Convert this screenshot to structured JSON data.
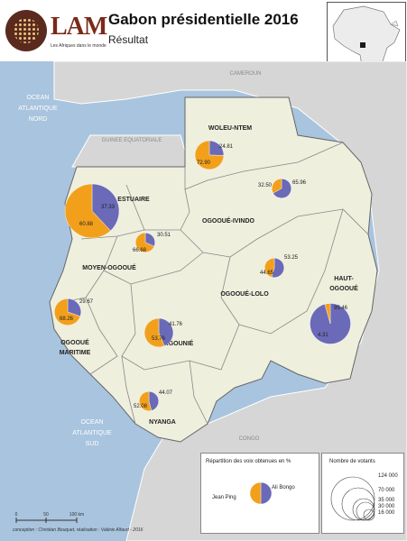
{
  "header": {
    "logo_text": "LAM",
    "logo_tagline": "Les Afriques dans le monde",
    "title": "Gabon présidentielle 2016",
    "subtitle": "Résultat"
  },
  "colors": {
    "bongo": "#6a6ab8",
    "ping": "#f2a01c",
    "sea": "#a9c4de",
    "gabon": "#efefde",
    "neighbor": "#d6d6d6"
  },
  "labels": {
    "sea_north": [
      "OCEAN",
      "ATLANTIQUE",
      "NORD"
    ],
    "sea_south": [
      "OCEAN",
      "ATLANTIQUE",
      "SUD"
    ],
    "cameroun": "CAMEROUN",
    "guinee": "GUINEE EQUATORIALE",
    "congo": "CONGO"
  },
  "provinces": [
    {
      "name": "ESTUAIRE",
      "bongo": 37.33,
      "ping": 60.88,
      "votants": 124000
    },
    {
      "name": "WOLEU-NTEM",
      "bongo": 24.81,
      "ping": 72.9,
      "votants": 35000
    },
    {
      "name": "OGOOUÉ-IVINDO",
      "bongo": 65.96,
      "ping": 32.5,
      "votants": 16000
    },
    {
      "name": "MOYEN-OGOOUÉ",
      "bongo": 30.51,
      "ping": 66.68,
      "votants": 16000
    },
    {
      "name": "OGOOUÉ-LOLO",
      "bongo": 53.25,
      "ping": 44.65,
      "votants": 16000
    },
    {
      "name": "HAUT-OGOOUÉ",
      "bongo": 95.46,
      "ping": 4.31,
      "votants": 70000
    },
    {
      "name": "OGOOUÉ MARITIME",
      "bongo": 29.67,
      "ping": 68.26,
      "votants": 30000
    },
    {
      "name": "NGOUNIÉ",
      "bongo": 41.76,
      "ping": 53.76,
      "votants": 35000
    },
    {
      "name": "NYANGA",
      "bongo": 44.07,
      "ping": 52.08,
      "votants": 16000
    }
  ],
  "legend": {
    "pie_title": "Répartition des voix obtenues en %",
    "bongo_label": "Ali Bongo",
    "ping_label": "Jean Ping",
    "size_title": "Nombre de votants",
    "size_values": [
      "124 000",
      "70 000",
      "35 000",
      "30 000",
      "16 000"
    ]
  },
  "scale": {
    "labels": [
      "0",
      "50",
      "100 km"
    ]
  },
  "credits": "conception : Christian Bouquet, réalisation : Valérie Alfaurt - 2016"
}
